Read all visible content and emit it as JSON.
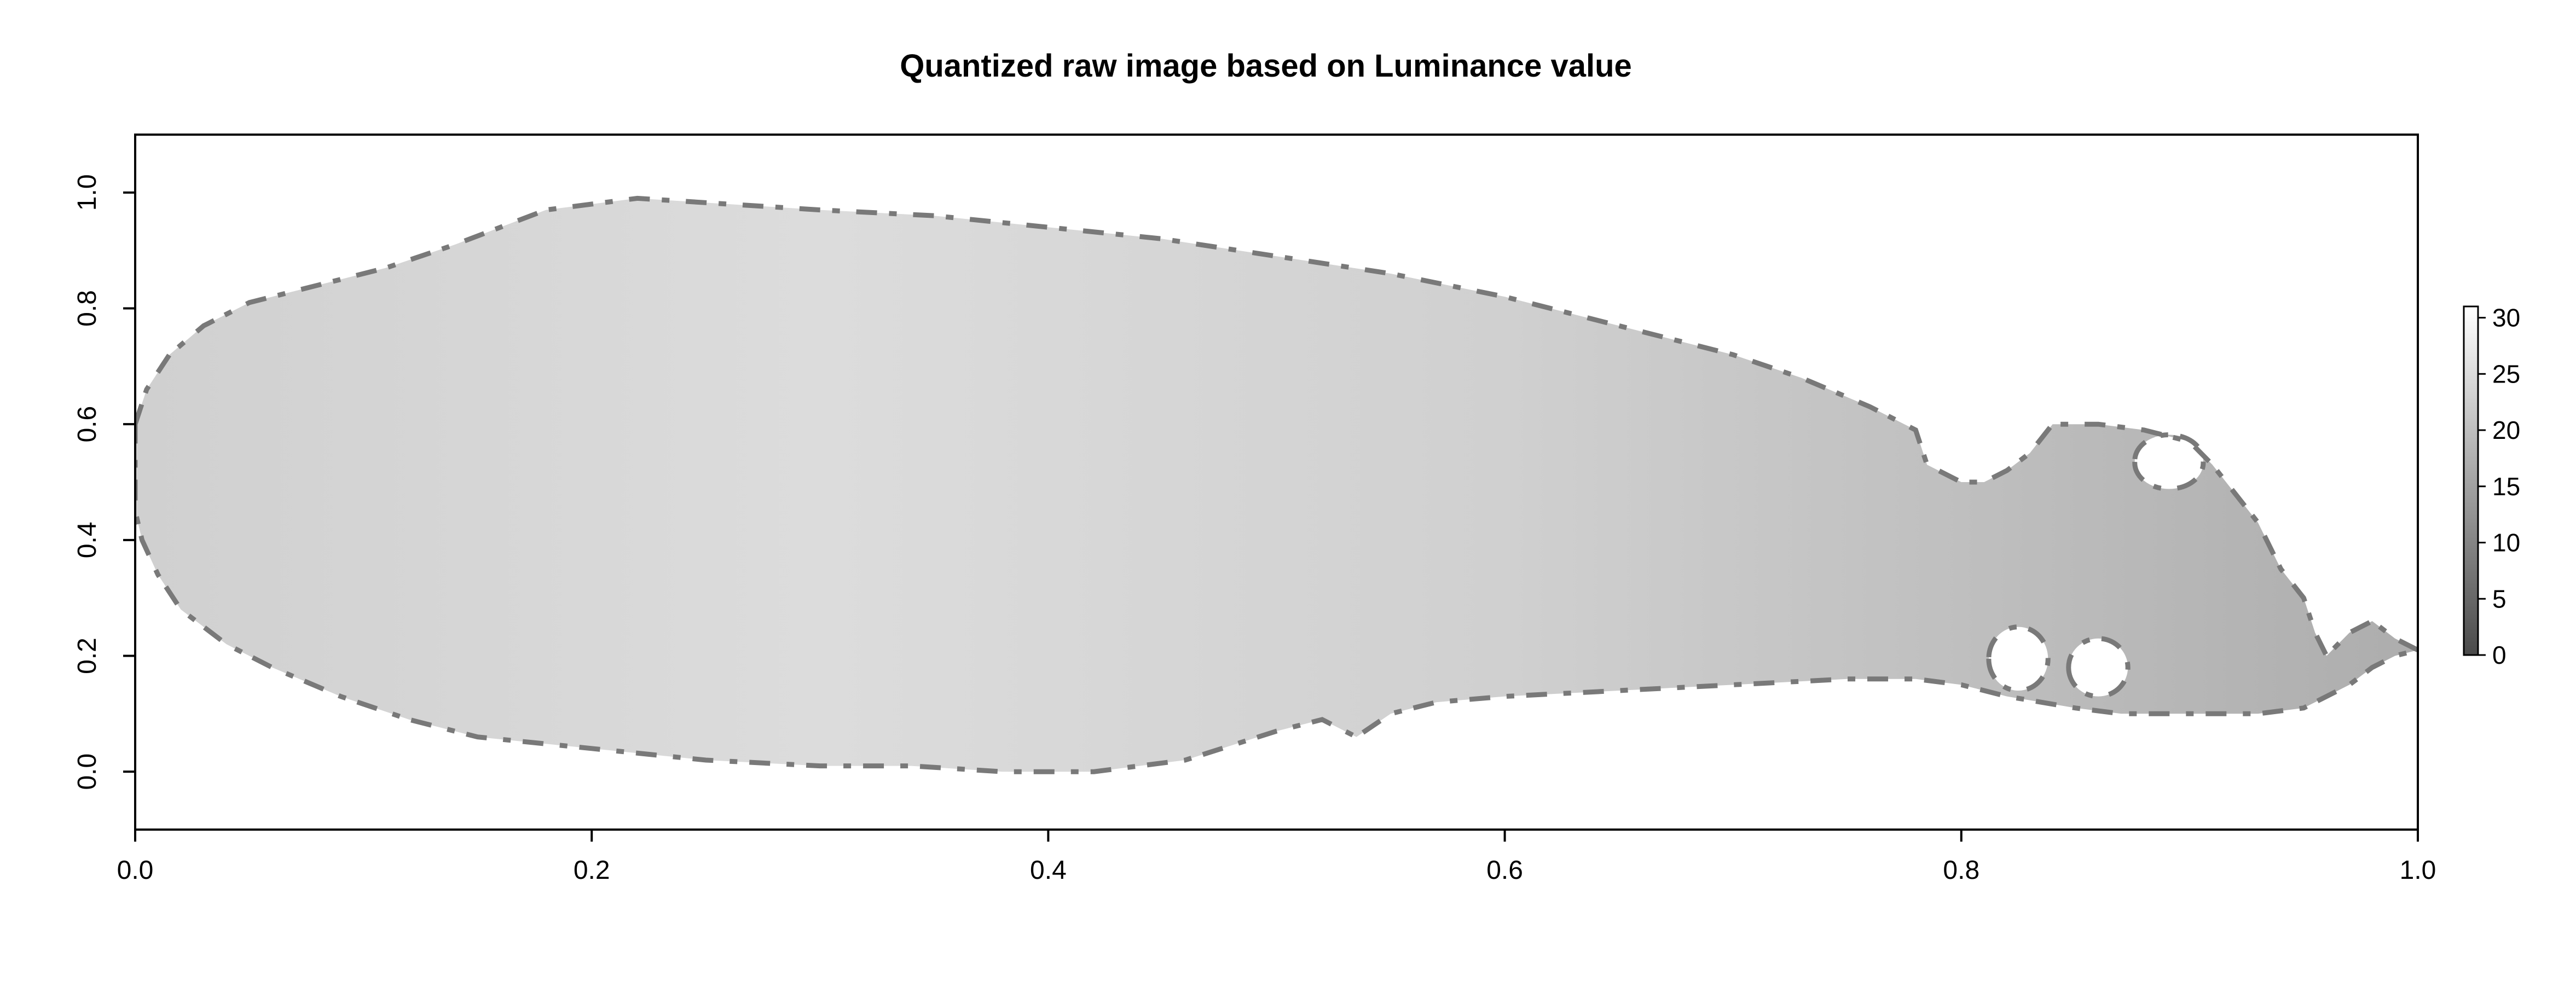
{
  "chart_data": {
    "type": "heatmap",
    "title": "Quantized raw image based on Luminance value",
    "xlabel": "",
    "ylabel": "",
    "xlim": [
      0.0,
      1.0
    ],
    "ylim": [
      -0.1,
      1.1
    ],
    "x_ticks": [
      "0.0",
      "0.2",
      "0.4",
      "0.6",
      "0.8",
      "1.0"
    ],
    "y_ticks": [
      "0.0",
      "0.2",
      "0.4",
      "0.6",
      "0.8",
      "1.0"
    ],
    "grid": false,
    "colorbar": {
      "placement": "right",
      "range": [
        0,
        31
      ],
      "ticks": [
        "0",
        "5",
        "10",
        "15",
        "20",
        "25",
        "30"
      ],
      "color_low": "#4a4a4a",
      "color_high": "#ffffff"
    },
    "shape_outline": {
      "upper": [
        [
          0.0,
          0.6
        ],
        [
          0.005,
          0.66
        ],
        [
          0.015,
          0.72
        ],
        [
          0.03,
          0.77
        ],
        [
          0.05,
          0.81
        ],
        [
          0.08,
          0.84
        ],
        [
          0.11,
          0.87
        ],
        [
          0.14,
          0.91
        ],
        [
          0.16,
          0.94
        ],
        [
          0.18,
          0.97
        ],
        [
          0.22,
          0.99
        ],
        [
          0.26,
          0.98
        ],
        [
          0.3,
          0.97
        ],
        [
          0.35,
          0.96
        ],
        [
          0.4,
          0.94
        ],
        [
          0.45,
          0.92
        ],
        [
          0.5,
          0.89
        ],
        [
          0.55,
          0.86
        ],
        [
          0.6,
          0.82
        ],
        [
          0.65,
          0.77
        ],
        [
          0.7,
          0.72
        ],
        [
          0.73,
          0.68
        ],
        [
          0.76,
          0.63
        ],
        [
          0.78,
          0.59
        ],
        [
          0.785,
          0.53
        ],
        [
          0.8,
          0.5
        ],
        [
          0.81,
          0.5
        ],
        [
          0.82,
          0.52
        ],
        [
          0.83,
          0.55
        ],
        [
          0.84,
          0.6
        ],
        [
          0.86,
          0.6
        ],
        [
          0.88,
          0.59
        ],
        [
          0.9,
          0.57
        ],
        [
          0.91,
          0.53
        ],
        [
          0.92,
          0.48
        ],
        [
          0.93,
          0.43
        ],
        [
          0.94,
          0.35
        ],
        [
          0.95,
          0.3
        ],
        [
          0.955,
          0.24
        ],
        [
          0.96,
          0.2
        ],
        [
          0.97,
          0.24
        ],
        [
          0.98,
          0.26
        ],
        [
          0.99,
          0.23
        ],
        [
          1.0,
          0.21
        ]
      ],
      "lower": [
        [
          1.0,
          0.21
        ],
        [
          0.99,
          0.2
        ],
        [
          0.98,
          0.18
        ],
        [
          0.97,
          0.15
        ],
        [
          0.96,
          0.13
        ],
        [
          0.95,
          0.11
        ],
        [
          0.93,
          0.1
        ],
        [
          0.9,
          0.1
        ],
        [
          0.87,
          0.1
        ],
        [
          0.85,
          0.11
        ],
        [
          0.82,
          0.13
        ],
        [
          0.8,
          0.15
        ],
        [
          0.78,
          0.16
        ],
        [
          0.75,
          0.16
        ],
        [
          0.7,
          0.15
        ],
        [
          0.65,
          0.14
        ],
        [
          0.6,
          0.13
        ],
        [
          0.57,
          0.12
        ],
        [
          0.55,
          0.1
        ],
        [
          0.535,
          0.06
        ],
        [
          0.52,
          0.09
        ],
        [
          0.5,
          0.07
        ],
        [
          0.46,
          0.02
        ],
        [
          0.42,
          0.0
        ],
        [
          0.38,
          0.0
        ],
        [
          0.34,
          0.01
        ],
        [
          0.3,
          0.01
        ],
        [
          0.25,
          0.02
        ],
        [
          0.2,
          0.04
        ],
        [
          0.15,
          0.06
        ],
        [
          0.12,
          0.09
        ],
        [
          0.09,
          0.13
        ],
        [
          0.06,
          0.18
        ],
        [
          0.04,
          0.22
        ],
        [
          0.02,
          0.28
        ],
        [
          0.01,
          0.34
        ],
        [
          0.003,
          0.4
        ],
        [
          0.0,
          0.45
        ]
      ],
      "holes": [
        {
          "cx": 0.891,
          "cy": 0.535,
          "rx": 0.015,
          "ry": 0.045
        },
        {
          "cx": 0.825,
          "cy": 0.195,
          "rx": 0.013,
          "ry": 0.055
        },
        {
          "cx": 0.86,
          "cy": 0.18,
          "rx": 0.013,
          "ry": 0.05
        }
      ]
    },
    "luminance_gradient": [
      {
        "x": 0.0,
        "value": 23
      },
      {
        "x": 0.3,
        "value": 25
      },
      {
        "x": 0.6,
        "value": 23
      },
      {
        "x": 0.8,
        "value": 20
      },
      {
        "x": 1.0,
        "value": 17
      }
    ],
    "edge_value": 8
  }
}
